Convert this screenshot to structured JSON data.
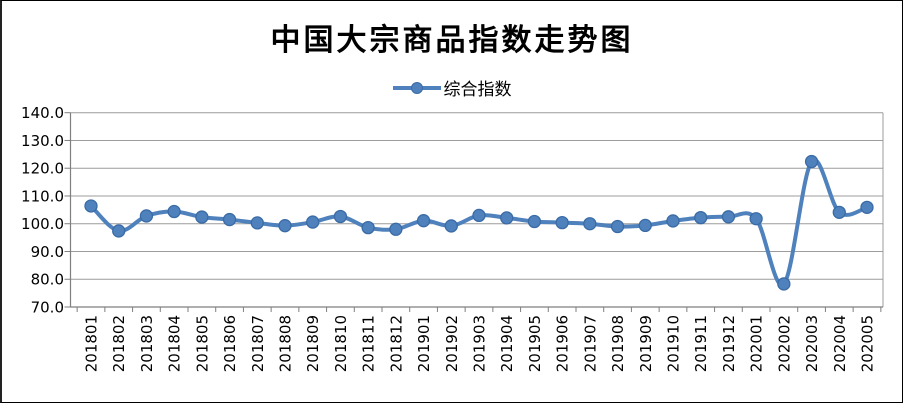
{
  "window": {
    "background": "#ffffff",
    "border_color": "#000000"
  },
  "chart_data": {
    "type": "line",
    "title": "中国大宗商品指数走势图",
    "legend": {
      "position": "top",
      "entries": [
        "综合指数"
      ]
    },
    "categories": [
      "201801",
      "201802",
      "201803",
      "201804",
      "201805",
      "201806",
      "201807",
      "201808",
      "201809",
      "201810",
      "201811",
      "201812",
      "201901",
      "201902",
      "201903",
      "201904",
      "201905",
      "201906",
      "201907",
      "201908",
      "201909",
      "201910",
      "201911",
      "201912",
      "202001",
      "202002",
      "202003",
      "202004",
      "202005"
    ],
    "series": [
      {
        "name": "综合指数",
        "color": "#4F81BD",
        "marker_border_color": "#3A6BA5",
        "marker": "circle",
        "smooth": true,
        "values": [
          106.4,
          97.4,
          102.8,
          104.4,
          102.4,
          101.5,
          100.3,
          99.3,
          100.6,
          102.6,
          98.6,
          98.0,
          101.1,
          99.2,
          103.0,
          102.1,
          100.8,
          100.4,
          100.0,
          99.0,
          99.4,
          101.0,
          102.2,
          102.5,
          101.8,
          78.3,
          122.4,
          104.1,
          105.9
        ]
      }
    ],
    "xlabel": "",
    "ylabel": "",
    "ylim": [
      70,
      140
    ],
    "ytick_step": 10,
    "ytick_labels": [
      "140.0",
      "130.0",
      "120.0",
      "110.0",
      "100.0",
      "90.0",
      "80.0",
      "70.0"
    ],
    "grid": true,
    "gridline_color": "#9C9C9C",
    "axis_color": "#7F7F7F",
    "text_color": "#000000",
    "axis_font_size": 15
  }
}
